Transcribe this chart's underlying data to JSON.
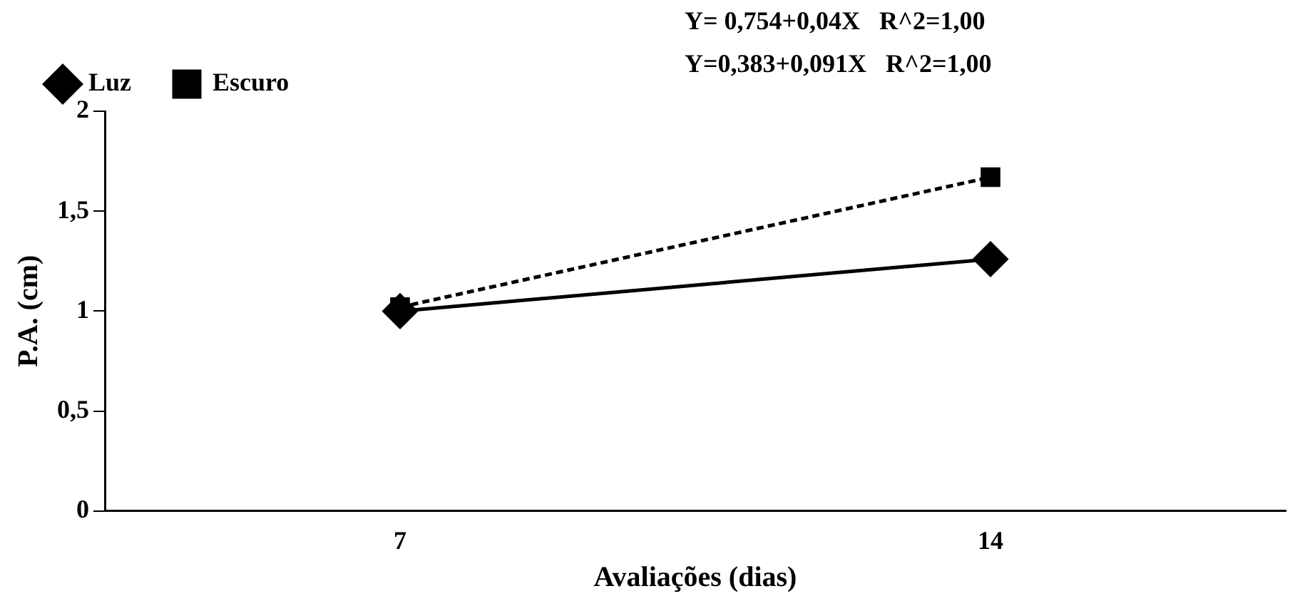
{
  "chart_data": {
    "type": "line",
    "xlabel": "Avaliações (dias)",
    "ylabel": "P.A. (cm)",
    "categories": [
      "7",
      "14"
    ],
    "series": [
      {
        "name": "Luz",
        "color": "#000000",
        "values": [
          1.0,
          1.26
        ],
        "marker": "diamond",
        "line_style": "solid"
      },
      {
        "name": "Escuro",
        "color": "#000000",
        "values": [
          1.02,
          1.67
        ],
        "marker": "square",
        "line_style": "dashed"
      }
    ],
    "annotations": [
      "Y= 0,754+0,04X   R^2=1,00",
      "Y=0,383+0,091X   R^2=1,00"
    ],
    "ylim": [
      0,
      2
    ],
    "yticks": [
      0,
      {
        "value": 0.5,
        "label": "0,5"
      },
      1,
      {
        "value": 1.5,
        "label": "1,5"
      },
      2
    ],
    "grid": false,
    "legend": "top"
  }
}
